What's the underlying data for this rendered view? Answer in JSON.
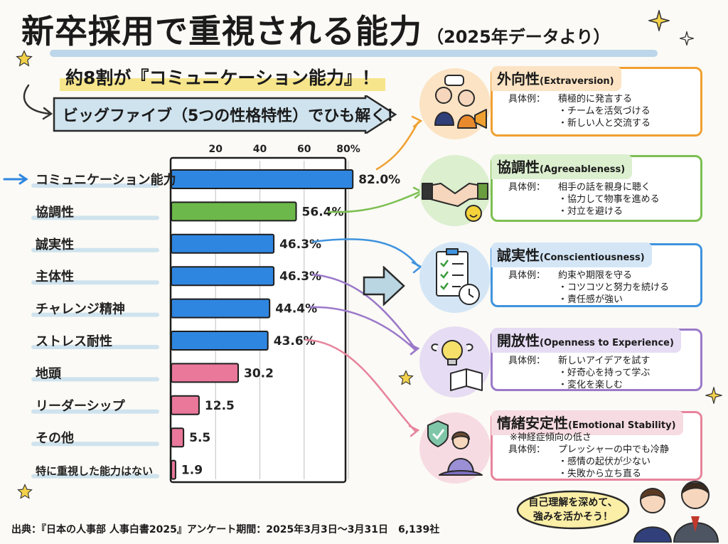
{
  "title": {
    "main": "新卒採用で重視される能力",
    "sub": "（2025年データより）"
  },
  "headline": "約8割が『コミュニケーション能力』！",
  "banner": "ビッグファイブ（5つの性格特性）でひも解く！",
  "chart_data": {
    "type": "bar",
    "orientation": "horizontal",
    "categories": [
      "コミュニケーション能力",
      "協調性",
      "誠実性",
      "主体性",
      "チャレンジ精神",
      "ストレス耐性",
      "地頭",
      "リーダーシップ",
      "その他",
      "特に重視した能力はない"
    ],
    "values": [
      82.0,
      56.4,
      46.3,
      46.3,
      44.4,
      43.6,
      30.2,
      12.5,
      5.5,
      1.9
    ],
    "value_labels": [
      "82.0%",
      "56.4%",
      "46.3%",
      "46.3%",
      "44.4%",
      "43.6%",
      "30.2",
      "12.5",
      "5.5",
      "1.9"
    ],
    "bar_colors": [
      "#2f86e0",
      "#6cb84a",
      "#2f86e0",
      "#2f86e0",
      "#2f86e0",
      "#2f86e0",
      "#e9789a",
      "#e9789a",
      "#e9789a",
      "#e9789a"
    ],
    "xticks": [
      "20",
      "40",
      "60",
      "80%"
    ],
    "xtick_values": [
      20,
      40,
      60,
      80
    ],
    "xlim": [
      0,
      80
    ],
    "grid": true
  },
  "traits": [
    {
      "name": "外向性",
      "en": "(Extraversion)",
      "color": "#f0a030",
      "bg": "#fbe3c4",
      "note": "",
      "examples_label": "具体例：",
      "examples": [
        "積極的に発言する",
        "・チームを活気づける",
        "・新しい人と交流する"
      ]
    },
    {
      "name": "協調性",
      "en": "(Agreeableness)",
      "color": "#7cbf52",
      "bg": "#dcefcf",
      "note": "",
      "examples_label": "具体例：",
      "examples": [
        "相手の話を親身に聴く",
        "・協力して物事を進める",
        "・対立を避ける"
      ]
    },
    {
      "name": "誠実性",
      "en": "(Conscientiousness)",
      "color": "#3f93de",
      "bg": "#d4e6f6",
      "note": "",
      "examples_label": "具体例：",
      "examples": [
        "約束や期限を守る",
        "・コツコツと努力を続ける",
        "・責任感が強い"
      ]
    },
    {
      "name": "開放性",
      "en": "(Openness to Experience)",
      "color": "#9b79c9",
      "bg": "#e6dcf3",
      "note": "",
      "examples_label": "具体例：",
      "examples": [
        "新しいアイデアを試す",
        "・好奇心を持って学ぶ",
        "・変化を楽しむ"
      ]
    },
    {
      "name": "情緒安定性",
      "en": "(Emotional Stability)",
      "color": "#e7849c",
      "bg": "#f7dbe2",
      "note": "※神経症傾向の低さ",
      "examples_label": "具体例：",
      "examples": [
        "プレッシャーの中でも冷静",
        "・感情の起伏が少ない",
        "・失敗から立ち直る"
      ]
    }
  ],
  "source": "出典：『日本の人事部 人事白書2025』アンケート期間：2025年3月3日〜3月31日　6,139社",
  "bubble": {
    "line1": "自己理解を深めて、",
    "line2": "強みを活かそう！"
  }
}
